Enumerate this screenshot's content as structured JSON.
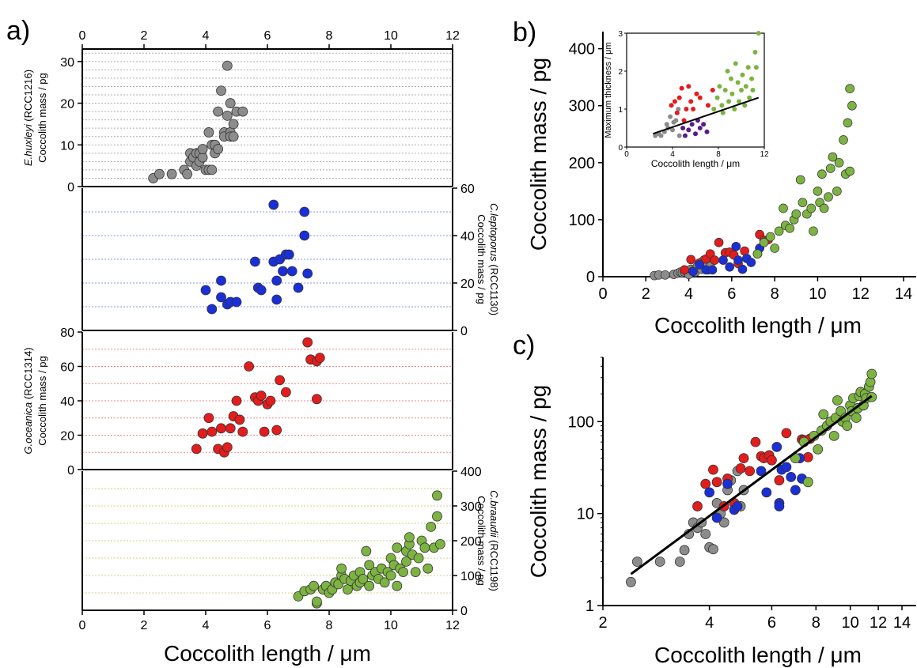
{
  "figure": {
    "panel_labels": {
      "a": "a)",
      "b": "b)",
      "c": "c)"
    },
    "xlabel": "Coccolith length / μm"
  },
  "colors": {
    "ehux": "#8c8c8c",
    "clepto": "#1a2fd6",
    "gocean": "#e11d1d",
    "cbraa": "#7cb342",
    "inset_purple": "#5b1a8c",
    "grid_gray": "#b0b0b0",
    "grid_blue": "#8a9ae8",
    "grid_red": "#f08a8a",
    "grid_olive": "#d8cf8a"
  },
  "chart_data": [
    {
      "id": "a1",
      "type": "scatter",
      "ylabel_species": "E.huxleyi",
      "ylabel_strain": " (RCC1216)",
      "ylabel": "Coccolith mass / pg",
      "xlim": [
        0,
        12
      ],
      "ylim": [
        0,
        33
      ],
      "xticks": [
        "0",
        "2",
        "4",
        "6",
        "8",
        "10",
        "12"
      ],
      "yticks": [
        "0",
        "10",
        "20",
        "30"
      ],
      "x": [
        2.3,
        2.5,
        2.9,
        3.3,
        3.4,
        3.5,
        3.5,
        3.6,
        3.7,
        3.7,
        3.8,
        3.8,
        3.9,
        3.9,
        4.0,
        4.1,
        4.1,
        4.2,
        4.2,
        4.3,
        4.3,
        4.4,
        4.4,
        4.5,
        4.6,
        4.6,
        4.7,
        4.7,
        4.8,
        4.8,
        4.8,
        4.9,
        4.9,
        5.0,
        5.2
      ],
      "y": [
        2,
        3,
        3,
        4,
        3,
        6,
        8,
        7,
        8,
        5,
        6,
        8,
        7,
        9,
        4,
        4,
        13,
        10,
        4,
        8,
        10,
        18,
        9,
        23,
        13,
        12,
        29,
        17,
        13,
        12,
        20,
        12,
        15,
        18,
        18
      ]
    },
    {
      "id": "a2",
      "type": "scatter",
      "ylabel_species": "C.leptoporus",
      "ylabel_strain": " (RCC1130)",
      "ylabel": "Coccolith mass / pg",
      "xlim": [
        0,
        12
      ],
      "ylim": [
        0,
        60
      ],
      "yticks": [
        "0",
        "20",
        "40",
        "60"
      ],
      "x": [
        4.0,
        4.2,
        4.5,
        4.5,
        4.7,
        4.8,
        5.0,
        5.6,
        5.7,
        5.8,
        6.2,
        6.2,
        6.3,
        6.3,
        6.4,
        6.5,
        6.6,
        6.7,
        6.8,
        7.0,
        7.2,
        7.2,
        7.3
      ],
      "y": [
        17,
        9,
        21,
        14,
        11,
        12,
        12,
        29,
        18,
        17,
        53,
        29,
        21,
        13,
        30,
        25,
        32,
        32,
        25,
        18,
        40,
        50,
        24
      ]
    },
    {
      "id": "a3",
      "type": "scatter",
      "ylabel_species": "G.oceanica",
      "ylabel_strain": " (RCC1314)",
      "ylabel": "Coccolith mass / pg",
      "xlim": [
        0,
        12
      ],
      "ylim": [
        0,
        80
      ],
      "yticks": [
        "0",
        "20",
        "40",
        "60",
        "80"
      ],
      "x": [
        3.7,
        3.9,
        4.1,
        4.2,
        4.4,
        4.5,
        4.6,
        4.7,
        4.8,
        4.9,
        5.0,
        5.1,
        5.2,
        5.4,
        5.6,
        5.7,
        5.8,
        5.9,
        6.0,
        6.1,
        6.3,
        6.4,
        6.6,
        7.3,
        7.4,
        7.6,
        7.6,
        7.7
      ],
      "y": [
        12,
        21,
        30,
        22,
        12,
        24,
        10,
        13,
        24,
        31,
        40,
        29,
        22,
        60,
        42,
        40,
        43,
        22,
        38,
        40,
        23,
        52,
        45,
        74,
        64,
        63,
        41,
        65
      ]
    },
    {
      "id": "a4",
      "type": "scatter",
      "ylabel_species": "C.braaudii",
      "ylabel_strain": " (RCC1198)",
      "ylabel": "Coccolith mass / pg",
      "xlim": [
        0,
        12
      ],
      "ylim": [
        0,
        400
      ],
      "yticks": [
        "0",
        "100",
        "200",
        "300",
        "400"
      ],
      "x": [
        7.0,
        7.2,
        7.4,
        7.5,
        7.6,
        7.6,
        7.8,
        7.9,
        8.0,
        8.1,
        8.2,
        8.3,
        8.4,
        8.4,
        8.5,
        8.6,
        8.7,
        8.8,
        8.9,
        9.0,
        9.0,
        9.1,
        9.2,
        9.3,
        9.3,
        9.4,
        9.5,
        9.6,
        9.7,
        9.8,
        9.9,
        10.0,
        10.0,
        10.1,
        10.2,
        10.2,
        10.3,
        10.4,
        10.5,
        10.5,
        10.6,
        10.6,
        10.7,
        10.8,
        10.9,
        11.0,
        11.1,
        11.2,
        11.3,
        11.4,
        11.5,
        11.5,
        11.6
      ],
      "y": [
        40,
        55,
        60,
        70,
        20,
        25,
        60,
        70,
        50,
        60,
        80,
        75,
        100,
        120,
        90,
        60,
        85,
        100,
        70,
        80,
        110,
        90,
        170,
        130,
        70,
        100,
        110,
        90,
        120,
        80,
        110,
        150,
        100,
        130,
        70,
        180,
        120,
        110,
        140,
        170,
        190,
        210,
        160,
        110,
        150,
        200,
        180,
        120,
        240,
        180,
        270,
        330,
        190
      ]
    },
    {
      "id": "b",
      "type": "scatter",
      "ylabel": "Coccolith mass / pg",
      "xlim": [
        0,
        14
      ],
      "ylim": [
        0,
        430
      ],
      "xticks": [
        "0",
        "2",
        "4",
        "6",
        "8",
        "10",
        "12",
        "14"
      ],
      "yticks": [
        "0",
        "100",
        "200",
        "300",
        "400"
      ],
      "series": [
        {
          "color_key": "ehux",
          "x": [
            2.4,
            2.6,
            2.9,
            3.3,
            3.5,
            3.6,
            3.7,
            3.8,
            3.9,
            4.0,
            4.1,
            4.2,
            4.3,
            4.4,
            4.5,
            4.6,
            4.7,
            4.8,
            4.9,
            5.0
          ],
          "y": [
            2,
            3,
            3,
            4,
            6,
            8,
            7,
            8,
            9,
            4,
            13,
            10,
            8,
            18,
            23,
            13,
            29,
            17,
            12,
            18
          ]
        },
        {
          "color_key": "gocean",
          "x": [
            3.8,
            4.1,
            4.5,
            4.8,
            5.0,
            5.2,
            5.4,
            5.7,
            5.9,
            6.1,
            6.3,
            6.6,
            7.3,
            7.5,
            7.7
          ],
          "y": [
            12,
            30,
            24,
            31,
            40,
            29,
            60,
            42,
            43,
            38,
            23,
            45,
            74,
            64,
            65
          ]
        },
        {
          "color_key": "clepto",
          "x": [
            4.2,
            4.5,
            4.8,
            5.1,
            5.6,
            5.9,
            6.2,
            6.3,
            6.5,
            6.7,
            6.9,
            7.2,
            7.3
          ],
          "y": [
            9,
            21,
            12,
            12,
            29,
            17,
            53,
            29,
            13,
            32,
            25,
            40,
            50
          ]
        },
        {
          "color_key": "cbraa",
          "x": [
            7.2,
            7.5,
            7.8,
            8.0,
            8.2,
            8.4,
            8.5,
            8.7,
            8.9,
            9.0,
            9.2,
            9.3,
            9.5,
            9.7,
            9.8,
            10.0,
            10.1,
            10.2,
            10.3,
            10.5,
            10.6,
            10.7,
            10.9,
            11.0,
            11.2,
            11.3,
            11.4,
            11.5,
            11.5,
            11.6
          ],
          "y": [
            40,
            60,
            70,
            50,
            80,
            120,
            90,
            85,
            100,
            110,
            170,
            130,
            110,
            120,
            80,
            150,
            130,
            180,
            120,
            140,
            190,
            210,
            150,
            200,
            240,
            180,
            270,
            330,
            185,
            300
          ]
        }
      ]
    },
    {
      "id": "b_inset",
      "type": "scatter",
      "ylabel": "Maximum thickness / μm",
      "xlabel": "Coccolith length / μm",
      "xlim": [
        0,
        12
      ],
      "ylim": [
        0,
        3
      ],
      "xticks": [
        "0",
        "4",
        "8",
        "12"
      ],
      "yticks": [
        "0",
        "1",
        "2",
        "3"
      ],
      "trend": {
        "x": [
          2.3,
          11.5
        ],
        "y": [
          0.35,
          1.3
        ]
      },
      "series": [
        {
          "color_key": "ehux",
          "x": [
            2.5,
            2.8,
            3.0,
            3.3,
            3.5,
            3.6,
            3.8,
            4.0,
            4.1,
            4.3,
            4.5,
            4.6
          ],
          "y": [
            0.3,
            0.35,
            0.3,
            0.4,
            0.6,
            0.5,
            0.8,
            0.45,
            0.65,
            0.7,
            1.0,
            0.3
          ]
        },
        {
          "color_key": "gocean",
          "x": [
            3.9,
            4.2,
            4.4,
            4.6,
            4.8,
            5.0,
            5.2,
            5.4,
            5.6,
            5.8,
            6.1,
            6.4,
            7.1,
            7.5
          ],
          "y": [
            1.1,
            1.2,
            0.9,
            1.3,
            1.55,
            0.7,
            1.0,
            1.6,
            1.2,
            1.0,
            1.4,
            1.3,
            1.1,
            1.5
          ]
        },
        {
          "color_key": "inset_purple",
          "x": [
            4.9,
            5.1,
            5.4,
            5.7,
            6.0,
            6.2,
            6.4,
            6.7,
            7.0
          ],
          "y": [
            0.5,
            0.3,
            0.45,
            0.6,
            0.35,
            0.7,
            0.5,
            0.6,
            0.4
          ]
        },
        {
          "color_key": "cbraa",
          "x": [
            7.6,
            7.9,
            8.1,
            8.3,
            8.4,
            8.6,
            8.8,
            8.9,
            9.1,
            9.2,
            9.4,
            9.5,
            9.7,
            9.8,
            10.0,
            10.1,
            10.3,
            10.4,
            10.6,
            10.7,
            10.9,
            11.0,
            11.2,
            11.3,
            11.5
          ],
          "y": [
            1.0,
            1.3,
            1.6,
            1.1,
            0.9,
            1.5,
            2.0,
            1.2,
            1.8,
            1.4,
            1.0,
            2.2,
            1.7,
            1.2,
            1.5,
            1.9,
            1.1,
            1.6,
            2.1,
            1.3,
            1.8,
            1.5,
            2.5,
            2.1,
            3.0
          ]
        }
      ]
    },
    {
      "id": "c",
      "type": "scatter",
      "scale": "log-log",
      "ylabel": "Coccolith mass / pg",
      "xlim": [
        2,
        14
      ],
      "ylim": [
        1,
        500
      ],
      "xticks": [
        {
          "v": 2,
          "t": "2"
        },
        {
          "v": 4,
          "t": "4"
        },
        {
          "v": 6,
          "t": "6"
        },
        {
          "v": 8,
          "t": "8"
        },
        {
          "v": 10,
          "t": "10"
        },
        {
          "v": 12,
          "t": "12"
        },
        {
          "v": 14,
          "t": "14"
        }
      ],
      "yticks": [
        {
          "v": 1,
          "t": "1"
        },
        {
          "v": 10,
          "t": "10"
        },
        {
          "v": 100,
          "t": "100"
        }
      ],
      "trend": {
        "x": [
          2.4,
          11.5
        ],
        "y": [
          2.2,
          190
        ]
      },
      "series": [
        {
          "color_key": "ehux",
          "x": [
            2.4,
            2.5,
            2.9,
            3.3,
            3.4,
            3.5,
            3.6,
            3.7,
            3.8,
            3.9,
            4.0,
            4.1,
            4.2,
            4.3,
            4.4,
            4.5,
            4.6,
            4.7,
            4.8,
            4.9,
            5.0
          ],
          "y": [
            1.8,
            3,
            3,
            3,
            4,
            6,
            8,
            7,
            8,
            6,
            4.3,
            4.1,
            13,
            10,
            8,
            18,
            23,
            13,
            29,
            12,
            18
          ]
        },
        {
          "color_key": "gocean",
          "x": [
            3.7,
            3.9,
            4.1,
            4.2,
            4.4,
            4.5,
            4.7,
            4.9,
            5.0,
            5.2,
            5.4,
            5.6,
            5.7,
            5.9,
            6.0,
            6.3,
            6.6,
            7.3,
            7.4,
            7.6,
            7.7
          ],
          "y": [
            12,
            21,
            30,
            22,
            12,
            24,
            13,
            31,
            40,
            29,
            60,
            42,
            40,
            43,
            38,
            23,
            75,
            64,
            63,
            41,
            65
          ]
        },
        {
          "color_key": "clepto",
          "x": [
            4.0,
            4.2,
            4.5,
            4.7,
            4.8,
            5.6,
            5.8,
            6.2,
            6.3,
            6.3,
            6.4,
            6.6,
            6.8,
            7.0,
            7.2,
            7.3
          ],
          "y": [
            17,
            9,
            21,
            11,
            12,
            29,
            17,
            53,
            13,
            12,
            30,
            32,
            25,
            18,
            40,
            24
          ]
        },
        {
          "color_key": "cbraa",
          "x": [
            7.0,
            7.4,
            7.6,
            7.9,
            8.1,
            8.3,
            8.4,
            8.6,
            8.8,
            9.0,
            9.1,
            9.2,
            9.4,
            9.5,
            9.7,
            9.8,
            10.0,
            10.1,
            10.2,
            10.4,
            10.5,
            10.6,
            10.7,
            10.9,
            11.0,
            11.1,
            11.3,
            11.4,
            11.5,
            11.5
          ],
          "y": [
            40,
            60,
            22,
            70,
            50,
            80,
            120,
            90,
            100,
            70,
            110,
            170,
            130,
            100,
            110,
            90,
            150,
            130,
            180,
            110,
            140,
            190,
            210,
            150,
            200,
            180,
            240,
            270,
            330,
            185
          ]
        }
      ]
    }
  ]
}
